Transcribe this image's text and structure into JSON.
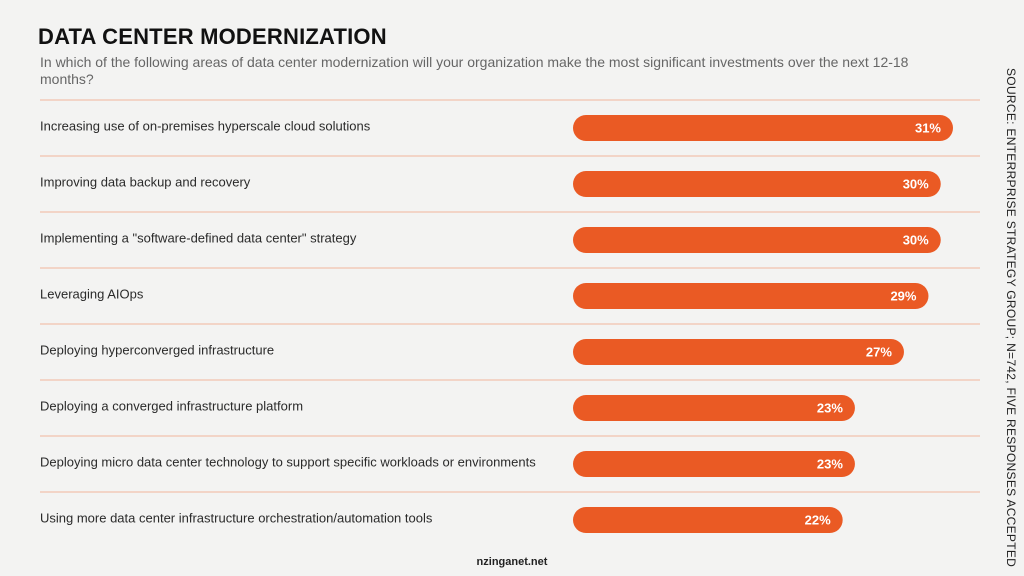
{
  "title": "DATA CENTER MODERNIZATION",
  "subtitle": "In which of the following areas of data center modernization will your organization make the most significant investments over the next 12-18 months?",
  "source": "SOURCE: ENTERRPRISE STRATEGY GROUP; N=742, FIVE RESPONSES ACCEPTED",
  "footer": "nzinganet.net",
  "colors": {
    "bar": "#ea5a24",
    "divider": "#f0b69c",
    "background": "#f3f3f2"
  },
  "chart_data": {
    "type": "bar",
    "orientation": "horizontal",
    "categories": [
      "Increasing use of on-premises hyperscale cloud solutions",
      "Improving data backup and recovery",
      "Implementing a \"software-defined data center\" strategy",
      "Leveraging AIOps",
      "Deploying hyperconverged infrastructure",
      "Deploying a converged infrastructure platform",
      "Deploying micro data center technology to support specific workloads or environments",
      "Using more data center infrastructure orchestration/automation tools"
    ],
    "values": [
      31,
      30,
      30,
      29,
      27,
      23,
      23,
      22
    ],
    "value_labels": [
      "31%",
      "30%",
      "30%",
      "29%",
      "27%",
      "23%",
      "23%",
      "22%"
    ],
    "unit": "%",
    "xlim": [
      0,
      31
    ],
    "grid": false,
    "legend": "none"
  }
}
